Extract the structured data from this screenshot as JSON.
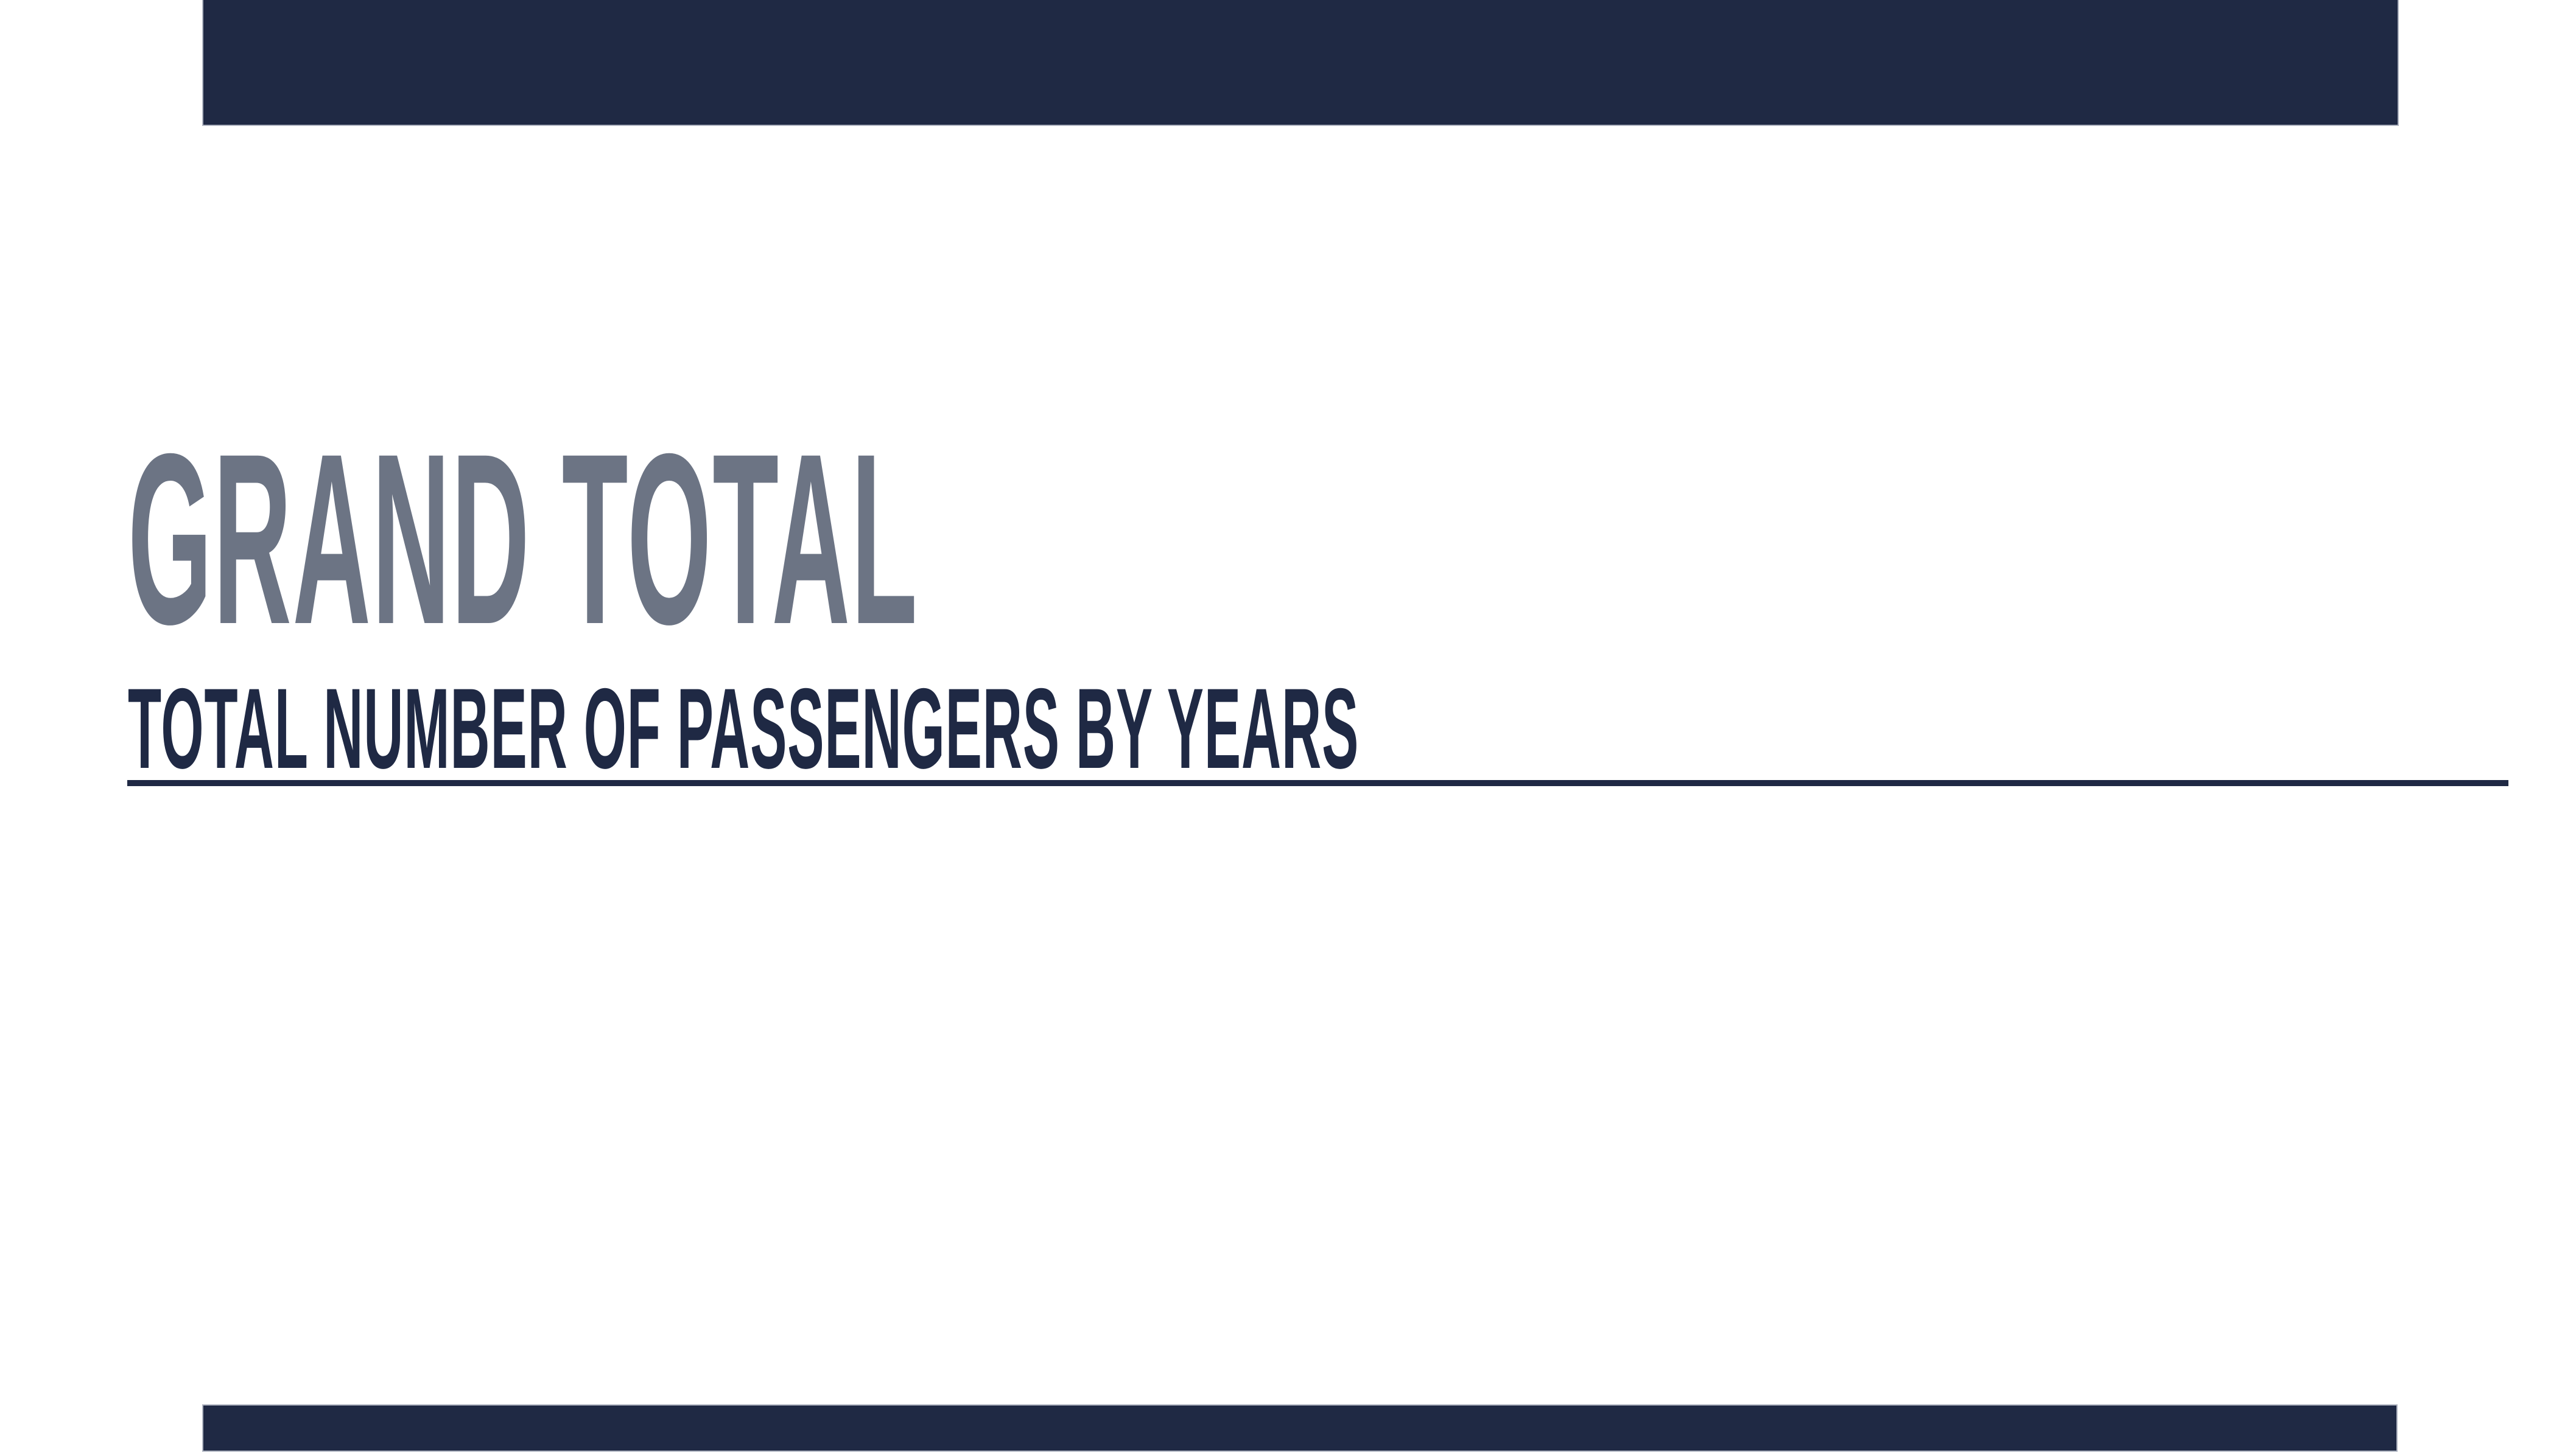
{
  "slide": {
    "kind": "section-header-slide",
    "title": "GRAND TOTAL",
    "subtitle": "TOTAL NUMBER OF PASSENGERS BY YEARS"
  },
  "colors": {
    "background": "#FFFFFF",
    "accent_bar": "#1F2944",
    "bar_edge": "#AEB3C0",
    "title_text": "#6C7484",
    "subtitle_text": "#1F2944",
    "underline": "#1F2944"
  }
}
